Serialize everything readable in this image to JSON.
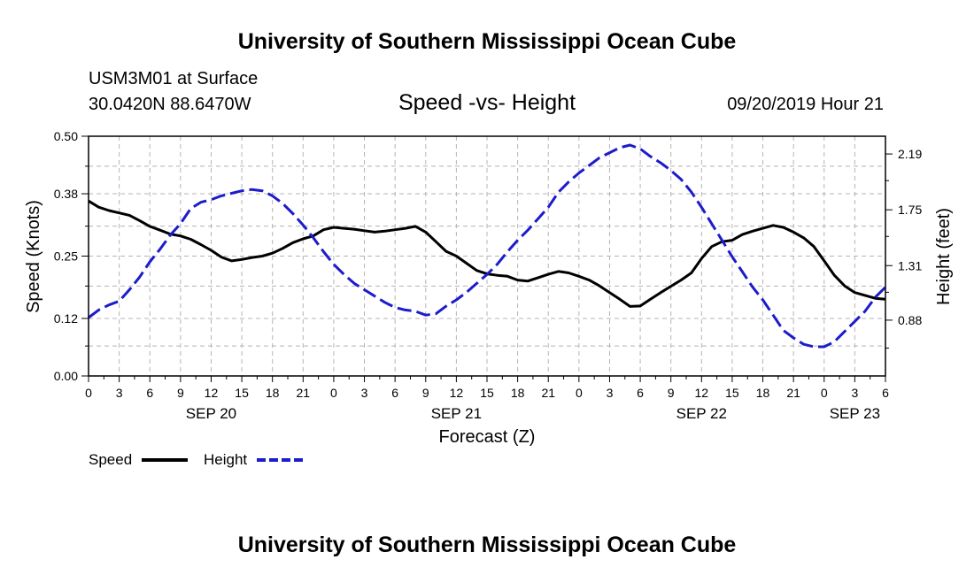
{
  "header": {
    "top_title": "University of Southern Mississippi Ocean Cube",
    "station": "USM3M01 at Surface",
    "coords": "30.0420N 88.6470W",
    "chart_title": "Speed -vs- Height",
    "datetime": "09/20/2019 Hour 21",
    "bottom_title": "University of Southern Mississippi Ocean Cube"
  },
  "colors": {
    "speed": "#000000",
    "height": "#1c1ccc",
    "grid": "#b4b4b4"
  },
  "chart_data": {
    "type": "line",
    "title": "Speed -vs- Height",
    "xlabel": "Forecast (Z)",
    "ylabel_left": "Speed (Knots)",
    "ylabel_right": "Height (feet)",
    "x_hours": [
      0,
      3,
      6,
      9,
      12,
      15,
      18,
      21,
      24,
      27,
      30,
      33,
      36,
      39,
      42,
      45,
      48,
      51,
      54,
      57,
      60,
      63,
      66,
      69,
      72,
      75,
      78
    ],
    "x_tick_labels": [
      "0",
      "3",
      "6",
      "9",
      "12",
      "15",
      "18",
      "21",
      "0",
      "3",
      "6",
      "9",
      "12",
      "15",
      "18",
      "21",
      "0",
      "3",
      "6",
      "9",
      "12",
      "15",
      "18",
      "21",
      "0",
      "3",
      "6"
    ],
    "date_labels": [
      {
        "label": "SEP 20",
        "hour": 12
      },
      {
        "label": "SEP 21",
        "hour": 36
      },
      {
        "label": "SEP 22",
        "hour": 60
      },
      {
        "label": "SEP 23",
        "hour": 75
      }
    ],
    "ylim_left": [
      0,
      0.5
    ],
    "yticks_left": [
      "0.00",
      "0.12",
      "0.25",
      "0.38",
      "0.50"
    ],
    "ylim_right": [
      0.44,
      2.33
    ],
    "yticks_right": [
      "0.88",
      "1.31",
      "1.75",
      "2.19"
    ],
    "series": [
      {
        "name": "Speed",
        "axis": "left",
        "style": "solid",
        "x": [
          0,
          1,
          2,
          3,
          4,
          5,
          6,
          7,
          8,
          9,
          10,
          11,
          12,
          13,
          14,
          15,
          16,
          17,
          18,
          19,
          20,
          21,
          22,
          23,
          24,
          25,
          26,
          27,
          28,
          29,
          30,
          31,
          32,
          33,
          34,
          35,
          36,
          37,
          38,
          39,
          40,
          41,
          42,
          43,
          44,
          45,
          46,
          47,
          48,
          49,
          50,
          51,
          52,
          53,
          54,
          55,
          56,
          57,
          58,
          59,
          60,
          61,
          62,
          63,
          64,
          65,
          66,
          67,
          68,
          69,
          70,
          71,
          72,
          73,
          74,
          75,
          76,
          77,
          78
        ],
        "values": [
          0.365,
          0.352,
          0.345,
          0.34,
          0.335,
          0.324,
          0.312,
          0.304,
          0.296,
          0.292,
          0.285,
          0.274,
          0.262,
          0.248,
          0.24,
          0.243,
          0.247,
          0.25,
          0.256,
          0.266,
          0.278,
          0.286,
          0.292,
          0.305,
          0.31,
          0.308,
          0.306,
          0.303,
          0.3,
          0.302,
          0.305,
          0.308,
          0.312,
          0.3,
          0.28,
          0.26,
          0.25,
          0.235,
          0.22,
          0.213,
          0.21,
          0.208,
          0.2,
          0.198,
          0.205,
          0.212,
          0.218,
          0.215,
          0.208,
          0.2,
          0.188,
          0.174,
          0.16,
          0.145,
          0.146,
          0.16,
          0.174,
          0.187,
          0.2,
          0.215,
          0.245,
          0.27,
          0.28,
          0.283,
          0.295,
          0.302,
          0.308,
          0.314,
          0.31,
          0.3,
          0.288,
          0.27,
          0.24,
          0.21,
          0.188,
          0.174,
          0.168,
          0.162,
          0.16
        ]
      },
      {
        "name": "Height",
        "axis": "right",
        "style": "dashed",
        "x": [
          0,
          1,
          2,
          3,
          4,
          5,
          6,
          7,
          8,
          9,
          10,
          11,
          12,
          13,
          14,
          15,
          16,
          17,
          18,
          19,
          20,
          21,
          22,
          23,
          24,
          25,
          26,
          27,
          28,
          29,
          30,
          31,
          32,
          33,
          34,
          35,
          36,
          37,
          38,
          39,
          40,
          41,
          42,
          43,
          44,
          45,
          46,
          47,
          48,
          49,
          50,
          51,
          52,
          53,
          54,
          55,
          56,
          57,
          58,
          59,
          60,
          61,
          62,
          63,
          64,
          65,
          66,
          67,
          68,
          69,
          70,
          71,
          72,
          73,
          74,
          75,
          76,
          77,
          78
        ],
        "values": [
          0.9,
          0.96,
          1.0,
          1.03,
          1.12,
          1.22,
          1.34,
          1.44,
          1.55,
          1.64,
          1.76,
          1.81,
          1.83,
          1.86,
          1.88,
          1.9,
          1.91,
          1.9,
          1.86,
          1.8,
          1.72,
          1.63,
          1.53,
          1.42,
          1.32,
          1.24,
          1.17,
          1.12,
          1.07,
          1.02,
          0.98,
          0.96,
          0.95,
          0.92,
          0.93,
          0.99,
          1.04,
          1.1,
          1.17,
          1.24,
          1.32,
          1.42,
          1.51,
          1.59,
          1.68,
          1.77,
          1.89,
          1.97,
          2.04,
          2.1,
          2.16,
          2.2,
          2.24,
          2.26,
          2.23,
          2.17,
          2.12,
          2.06,
          1.99,
          1.89,
          1.77,
          1.64,
          1.51,
          1.38,
          1.26,
          1.14,
          1.04,
          0.92,
          0.8,
          0.74,
          0.69,
          0.67,
          0.67,
          0.71,
          0.79,
          0.87,
          0.95,
          1.06,
          1.14
        ]
      }
    ]
  },
  "legend": {
    "speed_label": "Speed",
    "height_label": "Height"
  }
}
